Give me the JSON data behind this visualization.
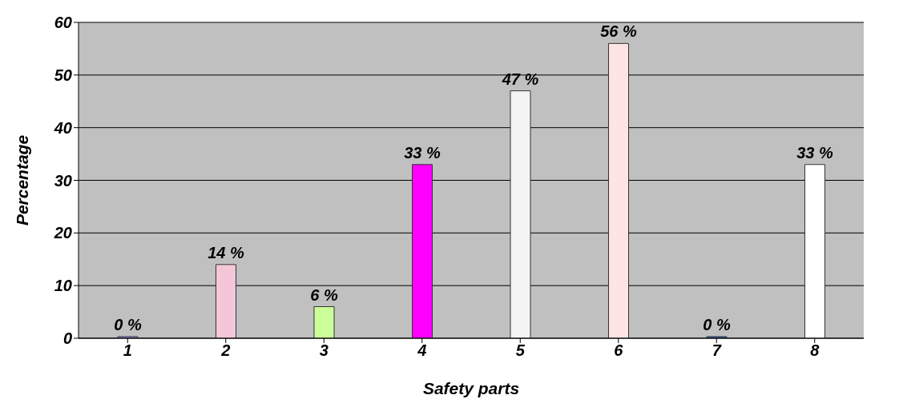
{
  "chart_data": {
    "type": "bar",
    "xlabel": "Safety parts",
    "ylabel": "Percentage",
    "categories": [
      "1",
      "2",
      "3",
      "4",
      "5",
      "6",
      "7",
      "8"
    ],
    "values": [
      0,
      14,
      6,
      33,
      47,
      56,
      0,
      33
    ],
    "value_labels": [
      "0 %",
      "14 %",
      "6 %",
      "33 %",
      "47 %",
      "56 %",
      "0 %",
      "33 %"
    ],
    "colors": [
      "#9999ff",
      "#f4c6d8",
      "#ccff99",
      "#ff00ff",
      "#f4f4f4",
      "#ffe4e4",
      "#3366cc",
      "#ffffff"
    ],
    "ylim": [
      0,
      60
    ],
    "yticks": [
      0,
      10,
      20,
      30,
      40,
      50,
      60
    ],
    "grid": "y"
  }
}
